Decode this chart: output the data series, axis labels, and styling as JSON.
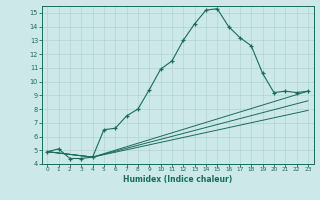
{
  "xlabel": "Humidex (Indice chaleur)",
  "xlim": [
    -0.5,
    23.5
  ],
  "ylim": [
    4,
    15.5
  ],
  "yticks": [
    4,
    5,
    6,
    7,
    8,
    9,
    10,
    11,
    12,
    13,
    14,
    15
  ],
  "xticks": [
    0,
    1,
    2,
    3,
    4,
    5,
    6,
    7,
    8,
    9,
    10,
    11,
    12,
    13,
    14,
    15,
    16,
    17,
    18,
    19,
    20,
    21,
    22,
    23
  ],
  "bg_color": "#cce8e8",
  "line_color": "#1a6b5a",
  "grid_color": "#b0d4d4",
  "line1_x": [
    0,
    1,
    2,
    3,
    4,
    5,
    6,
    7,
    8,
    9,
    10,
    11,
    12,
    13,
    14,
    15,
    16,
    17,
    18,
    19,
    20,
    21,
    22,
    23
  ],
  "line1_y": [
    4.9,
    5.1,
    4.4,
    4.4,
    4.5,
    6.5,
    6.6,
    7.5,
    8.0,
    9.4,
    10.9,
    11.5,
    13.0,
    14.2,
    15.2,
    15.3,
    14.0,
    13.2,
    12.6,
    10.6,
    9.2,
    9.3,
    9.2,
    9.3
  ],
  "line2_x": [
    0,
    4,
    23
  ],
  "line2_y": [
    4.9,
    4.5,
    9.3
  ],
  "line3_x": [
    0,
    4,
    23
  ],
  "line3_y": [
    4.9,
    4.5,
    8.6
  ],
  "line4_x": [
    0,
    4,
    23
  ],
  "line4_y": [
    4.9,
    4.5,
    7.9
  ]
}
